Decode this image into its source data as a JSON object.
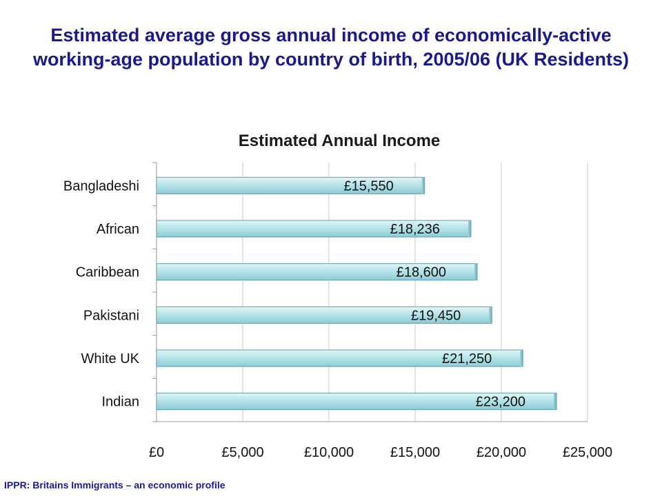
{
  "slide": {
    "title": "Estimated average gross annual income of economically-active working-age population by country of birth, 2005/06 (UK Residents)",
    "footer": "IPPR: Britains Immigrants – an economic profile"
  },
  "chart_data": {
    "type": "bar",
    "orientation": "horizontal",
    "title": "Estimated Annual Income",
    "categories": [
      "Bangladeshi",
      "African",
      "Caribbean",
      "Pakistani",
      "White UK",
      "Indian"
    ],
    "values": [
      15550,
      18236,
      18600,
      19450,
      21250,
      23200
    ],
    "data_labels": [
      "£15,550",
      "£18,236",
      "£18,600",
      "£19,450",
      "£21,250",
      "£23,200"
    ],
    "x_ticks": [
      0,
      5000,
      10000,
      15000,
      20000,
      25000
    ],
    "x_tick_labels": [
      "£0",
      "£5,000",
      "£10,000",
      "£15,000",
      "£20,000",
      "£25,000"
    ],
    "xlim": [
      0,
      25000
    ],
    "grid": true,
    "legend": "none",
    "bar_color": "#a9dfe6",
    "bar_edge_color": "#5c9aa6",
    "grid_color": "#c8c8c8"
  }
}
